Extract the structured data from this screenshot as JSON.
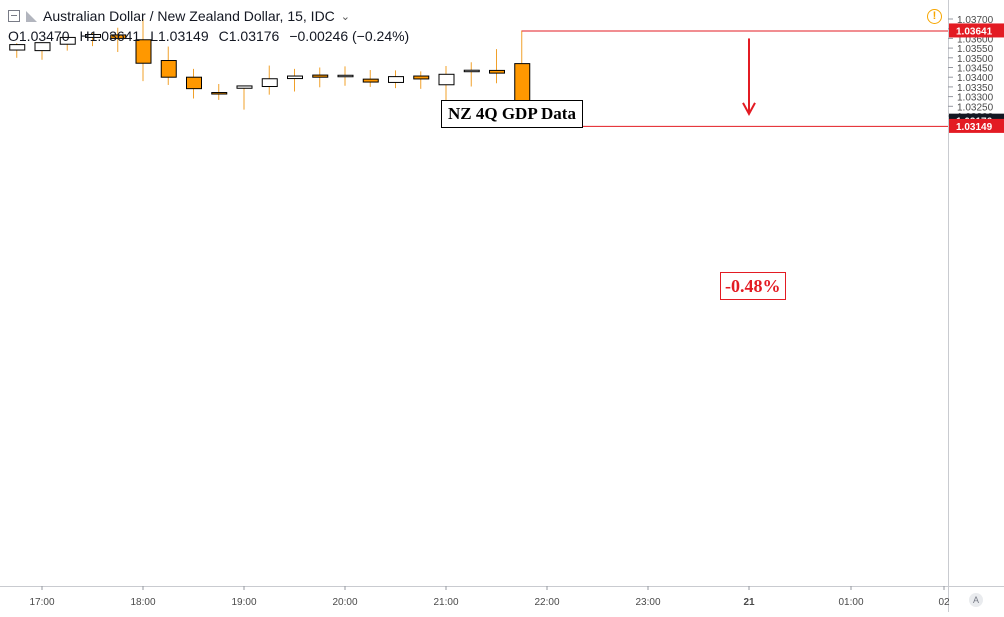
{
  "header": {
    "symbol_title": "Australian Dollar / New Zealand Dollar, 15, IDC",
    "open_label": "O1.03470",
    "high_label": "H1.03641",
    "low_label": "L1.03149",
    "close_label": "C1.03176",
    "change_label": "−0.00246 (−0.24%)",
    "icons": [
      "collapse-icon",
      "symbol-logo-icon",
      "chevron-down-icon",
      "warning-icon"
    ]
  },
  "annotations": {
    "event_label": "NZ 4Q GDP Data",
    "move_label": "-0.48%",
    "arrow_from": 1.03641,
    "arrow_to": 1.03149
  },
  "price_badges": [
    {
      "value": 1.03641,
      "text": "1.03641",
      "color": "#e31b23"
    },
    {
      "value": 1.03176,
      "text": "1.03176",
      "color": "#131722"
    },
    {
      "value": 1.03149,
      "text": "1.03149",
      "color": "#e31b23"
    }
  ],
  "scale_button": "A",
  "colors": {
    "up_body": "#ffffff",
    "down_body": "#ff9800",
    "candle_border": "#000000",
    "wick": "#f0a02a",
    "annotation_red": "#e31b23",
    "axis_text": "#4a4a4a"
  },
  "chart_data": {
    "type": "candlestick",
    "interval": "15",
    "y_range": [
      1.0312,
      1.0372
    ],
    "y_ticks": [
      "1.03700",
      "1.03650",
      "1.03600",
      "1.03550",
      "1.03500",
      "1.03450",
      "1.03400",
      "1.03350",
      "1.03300",
      "1.03250",
      "1.03200"
    ],
    "x_ticks": [
      "17:00",
      "18:00",
      "19:00",
      "20:00",
      "21:00",
      "22:00",
      "23:00",
      "21",
      "01:00",
      "02"
    ],
    "candles": [
      {
        "t": "16:45",
        "o": 1.0354,
        "h": 1.03575,
        "l": 1.035,
        "c": 1.03568
      },
      {
        "t": "17:00",
        "o": 1.03537,
        "h": 1.0358,
        "l": 1.0349,
        "c": 1.03578
      },
      {
        "t": "17:15",
        "o": 1.0357,
        "h": 1.03608,
        "l": 1.03537,
        "c": 1.03605
      },
      {
        "t": "17:30",
        "o": 1.03605,
        "h": 1.03628,
        "l": 1.0356,
        "c": 1.0362
      },
      {
        "t": "17:45",
        "o": 1.03618,
        "h": 1.03655,
        "l": 1.0353,
        "c": 1.036
      },
      {
        "t": "18:00",
        "o": 1.03593,
        "h": 1.037,
        "l": 1.0338,
        "c": 1.03472
      },
      {
        "t": "18:15",
        "o": 1.03486,
        "h": 1.03558,
        "l": 1.0336,
        "c": 1.034
      },
      {
        "t": "18:30",
        "o": 1.034,
        "h": 1.03443,
        "l": 1.0329,
        "c": 1.03341
      },
      {
        "t": "18:45",
        "o": 1.03321,
        "h": 1.03365,
        "l": 1.03283,
        "c": 1.03318
      },
      {
        "t": "19:00",
        "o": 1.03343,
        "h": 1.03356,
        "l": 1.03233,
        "c": 1.03355
      },
      {
        "t": "19:15",
        "o": 1.03352,
        "h": 1.0346,
        "l": 1.0331,
        "c": 1.03392
      },
      {
        "t": "19:30",
        "o": 1.03393,
        "h": 1.03443,
        "l": 1.03326,
        "c": 1.03406
      },
      {
        "t": "19:45",
        "o": 1.03411,
        "h": 1.0345,
        "l": 1.03348,
        "c": 1.034
      },
      {
        "t": "20:00",
        "o": 1.0341,
        "h": 1.03456,
        "l": 1.03356,
        "c": 1.0341
      },
      {
        "t": "20:15",
        "o": 1.0339,
        "h": 1.03437,
        "l": 1.0335,
        "c": 1.03375
      },
      {
        "t": "20:30",
        "o": 1.03373,
        "h": 1.03435,
        "l": 1.03344,
        "c": 1.03403
      },
      {
        "t": "20:45",
        "o": 1.03406,
        "h": 1.0343,
        "l": 1.0334,
        "c": 1.03391
      },
      {
        "t": "21:00",
        "o": 1.03361,
        "h": 1.03458,
        "l": 1.03263,
        "c": 1.03415
      },
      {
        "t": "21:15",
        "o": 1.03429,
        "h": 1.03477,
        "l": 1.03352,
        "c": 1.03436
      },
      {
        "t": "21:30",
        "o": 1.03435,
        "h": 1.03545,
        "l": 1.03369,
        "c": 1.03421
      },
      {
        "t": "21:45",
        "o": 1.0347,
        "h": 1.03641,
        "l": 1.03149,
        "c": 1.03176
      }
    ]
  }
}
